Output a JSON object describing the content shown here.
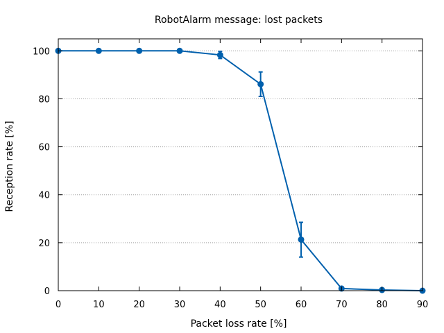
{
  "chart_data": {
    "type": "line",
    "title": "RobotAlarm message: lost packets",
    "xlabel": "Packet loss rate [%]",
    "ylabel": "Reception rate [%]",
    "xlim": [
      0,
      90
    ],
    "ylim": [
      0,
      105
    ],
    "xticks": [
      0,
      10,
      20,
      30,
      40,
      50,
      60,
      70,
      80,
      90
    ],
    "yticks": [
      0,
      20,
      40,
      60,
      80,
      100
    ],
    "grid": {
      "horizontal": true,
      "vertical": false
    },
    "legend": "none",
    "color": "#0060ad",
    "x": [
      0,
      10,
      20,
      30,
      40,
      50,
      60,
      70,
      80,
      90
    ],
    "series": [
      {
        "values": [
          100,
          100,
          100,
          100,
          98.3,
          86.1,
          21.3,
          0.9,
          0.3,
          0.0
        ],
        "error_low": [
          100,
          100,
          100,
          100,
          96.8,
          81.0,
          14.0,
          0.9,
          0.3,
          0.0
        ],
        "error_high": [
          100,
          100,
          100,
          100,
          99.8,
          91.2,
          28.5,
          0.9,
          0.3,
          0.0
        ]
      }
    ]
  }
}
